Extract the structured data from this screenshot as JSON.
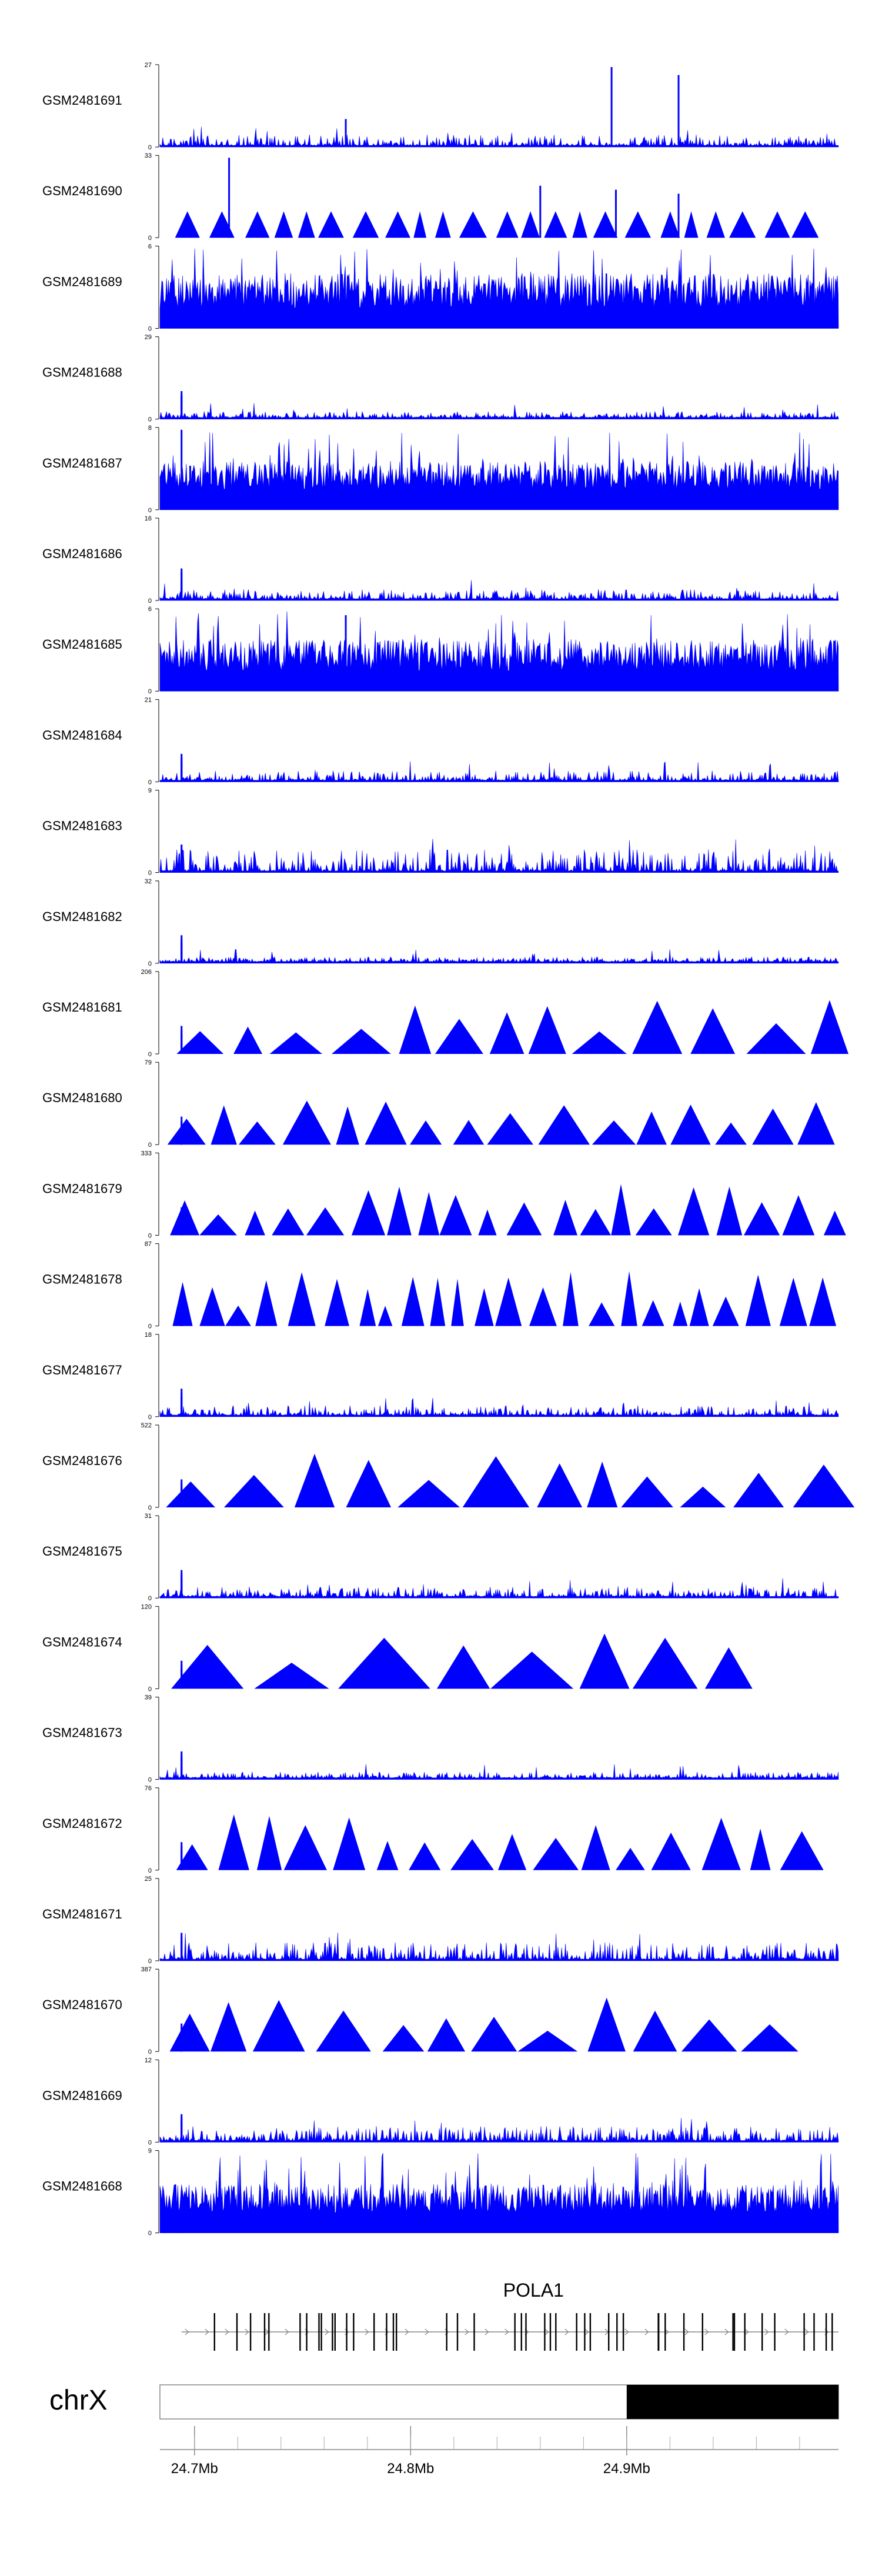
{
  "chart_data": {
    "type": "area",
    "colors": {
      "signal": "#0000ff",
      "axis": "#000000",
      "gene": "#000000",
      "ideogram_band": "#000000"
    },
    "x_axis": {
      "ticks": [
        "24.7Mb",
        "24.8Mb",
        "24.9Mb"
      ],
      "tick_values_mb": [
        24.7,
        24.8,
        24.9
      ],
      "range_mb": [
        24.684,
        24.998
      ]
    },
    "chromosome": {
      "label": "chrX",
      "band_start_mb": 24.9
    },
    "gene": {
      "name": "POLA1",
      "start_mb": 24.694,
      "end_mb": 24.998,
      "strand": "+"
    },
    "tracks": [
      {
        "name": "GSM2481691",
        "ymax": "27",
        "style": "spiky",
        "seed": 1,
        "noise": 0.09,
        "peaks": [
          [
            24.77,
            0.35
          ],
          [
            24.893,
            1.0
          ],
          [
            24.924,
            0.9
          ]
        ]
      },
      {
        "name": "GSM2481690",
        "ymax": "33",
        "style": "triangles",
        "seed": 2,
        "base": 0.33,
        "tri_count": 30,
        "peaks": [
          [
            24.716,
            1.0
          ],
          [
            24.86,
            0.65
          ],
          [
            24.895,
            0.6
          ],
          [
            24.924,
            0.55
          ]
        ]
      },
      {
        "name": "GSM2481689",
        "ymax": "6",
        "style": "dense",
        "seed": 3,
        "noise": 0.55,
        "peaks": []
      },
      {
        "name": "GSM2481688",
        "ymax": "29",
        "style": "spiky",
        "seed": 4,
        "noise": 0.05,
        "peaks": [
          [
            24.694,
            0.35
          ],
          [
            24.694,
            0.3
          ],
          [
            24.694,
            0.28
          ],
          [
            24.694,
            0.1
          ]
        ]
      },
      {
        "name": "GSM2481687",
        "ymax": "8",
        "style": "dense",
        "seed": 5,
        "noise": 0.45,
        "peaks": [
          [
            24.694,
            1.0
          ],
          [
            24.698,
            0.55
          ]
        ]
      },
      {
        "name": "GSM2481686",
        "ymax": "16",
        "style": "spiky",
        "seed": 6,
        "noise": 0.08,
        "peaks": [
          [
            24.694,
            0.4
          ],
          [
            24.694,
            0.35
          ],
          [
            24.694,
            0.25
          ],
          [
            24.694,
            0.15
          ]
        ]
      },
      {
        "name": "GSM2481685",
        "ymax": "6",
        "style": "dense",
        "seed": 7,
        "noise": 0.5,
        "peaks": [
          [
            24.77,
            0.95
          ]
        ]
      },
      {
        "name": "GSM2481684",
        "ymax": "21",
        "style": "spiky",
        "seed": 8,
        "noise": 0.08,
        "peaks": [
          [
            24.694,
            0.35
          ],
          [
            24.694,
            0.3
          ],
          [
            24.694,
            0.25
          ],
          [
            24.694,
            0.15
          ]
        ]
      },
      {
        "name": "GSM2481683",
        "ymax": "9",
        "style": "spiky",
        "seed": 9,
        "noise": 0.18,
        "peaks": [
          [
            24.694,
            0.35
          ],
          [
            24.694,
            0.3
          ],
          [
            24.694,
            0.25
          ],
          [
            24.694,
            0.15
          ]
        ]
      },
      {
        "name": "GSM2481682",
        "ymax": "32",
        "style": "spiky",
        "seed": 10,
        "noise": 0.04,
        "peaks": [
          [
            24.694,
            0.35
          ],
          [
            24.694,
            0.3
          ],
          [
            24.694,
            0.25
          ],
          [
            24.694,
            0.15
          ]
        ]
      },
      {
        "name": "GSM2481681",
        "ymax": "206",
        "style": "triangles",
        "seed": 11,
        "base": 0,
        "tri_count": 14,
        "peaks": [
          [
            24.694,
            0.35
          ],
          [
            24.694,
            0.3
          ],
          [
            24.694,
            0.25
          ],
          [
            24.694,
            0.15
          ]
        ]
      },
      {
        "name": "GSM2481680",
        "ymax": "79",
        "style": "triangles",
        "seed": 12,
        "base": 0,
        "tri_count": 16,
        "peaks": [
          [
            24.694,
            0.35
          ],
          [
            24.694,
            0.3
          ],
          [
            24.694,
            0.25
          ],
          [
            24.694,
            0.15
          ]
        ]
      },
      {
        "name": "GSM2481679",
        "ymax": "333",
        "style": "triangles",
        "seed": 13,
        "base": 0,
        "tri_count": 22,
        "peaks": [
          [
            24.694,
            0.35
          ],
          [
            24.694,
            0.3
          ],
          [
            24.694,
            0.25
          ],
          [
            24.694,
            0.15
          ]
        ]
      },
      {
        "name": "GSM2481678",
        "ymax": "87",
        "style": "triangles",
        "seed": 14,
        "base": 0,
        "tri_count": 30,
        "peaks": [
          [
            24.694,
            0.35
          ],
          [
            24.694,
            0.3
          ],
          [
            24.694,
            0.25
          ],
          [
            24.694,
            0.15
          ]
        ]
      },
      {
        "name": "GSM2481677",
        "ymax": "18",
        "style": "spiky",
        "seed": 15,
        "noise": 0.08,
        "peaks": [
          [
            24.694,
            0.35
          ],
          [
            24.694,
            0.3
          ],
          [
            24.694,
            0.25
          ],
          [
            24.694,
            0.15
          ]
        ]
      },
      {
        "name": "GSM2481676",
        "ymax": "522",
        "style": "triangles",
        "seed": 16,
        "base": 0,
        "tri_count": 12,
        "peaks": [
          [
            24.694,
            0.35
          ],
          [
            24.694,
            0.3
          ],
          [
            24.694,
            0.25
          ],
          [
            24.694,
            0.15
          ]
        ]
      },
      {
        "name": "GSM2481675",
        "ymax": "31",
        "style": "spiky",
        "seed": 17,
        "noise": 0.08,
        "peaks": [
          [
            24.694,
            0.35
          ],
          [
            24.694,
            0.3
          ],
          [
            24.694,
            0.25
          ],
          [
            24.694,
            0.15
          ]
        ]
      },
      {
        "name": "GSM2481674",
        "ymax": "120",
        "style": "triangles",
        "seed": 18,
        "base": 0,
        "tri_count": 8,
        "peaks": [
          [
            24.694,
            0.35
          ],
          [
            24.694,
            0.3
          ],
          [
            24.694,
            0.25
          ],
          [
            24.694,
            0.15
          ]
        ]
      },
      {
        "name": "GSM2481673",
        "ymax": "39",
        "style": "spiky",
        "seed": 19,
        "noise": 0.05,
        "peaks": [
          [
            24.694,
            0.35
          ],
          [
            24.694,
            0.3
          ],
          [
            24.694,
            0.25
          ],
          [
            24.694,
            0.15
          ]
        ]
      },
      {
        "name": "GSM2481672",
        "ymax": "76",
        "style": "triangles",
        "seed": 20,
        "base": 0,
        "tri_count": 18,
        "peaks": [
          [
            24.694,
            0.35
          ],
          [
            24.694,
            0.3
          ],
          [
            24.694,
            0.25
          ],
          [
            24.694,
            0.15
          ]
        ]
      },
      {
        "name": "GSM2481671",
        "ymax": "25",
        "style": "spiky",
        "seed": 21,
        "noise": 0.14,
        "peaks": [
          [
            24.694,
            0.35
          ],
          [
            24.694,
            0.3
          ],
          [
            24.694,
            0.25
          ],
          [
            24.694,
            0.15
          ]
        ]
      },
      {
        "name": "GSM2481670",
        "ymax": "387",
        "style": "triangles",
        "seed": 22,
        "base": 0,
        "tri_count": 12,
        "peaks": [
          [
            24.694,
            0.35
          ],
          [
            24.694,
            0.3
          ],
          [
            24.694,
            0.25
          ],
          [
            24.694,
            0.15
          ]
        ]
      },
      {
        "name": "GSM2481669",
        "ymax": "12",
        "style": "spiky",
        "seed": 23,
        "noise": 0.12,
        "peaks": [
          [
            24.694,
            0.35
          ],
          [
            24.694,
            0.3
          ],
          [
            24.694,
            0.25
          ],
          [
            24.694,
            0.15
          ]
        ]
      },
      {
        "name": "GSM2481668",
        "ymax": "9",
        "style": "dense",
        "seed": 24,
        "noise": 0.45,
        "peaks": [
          [
            24.694,
            0.35
          ],
          [
            24.694,
            0.3
          ],
          [
            24.694,
            0.25
          ],
          [
            24.694,
            0.15
          ]
        ]
      }
    ]
  }
}
